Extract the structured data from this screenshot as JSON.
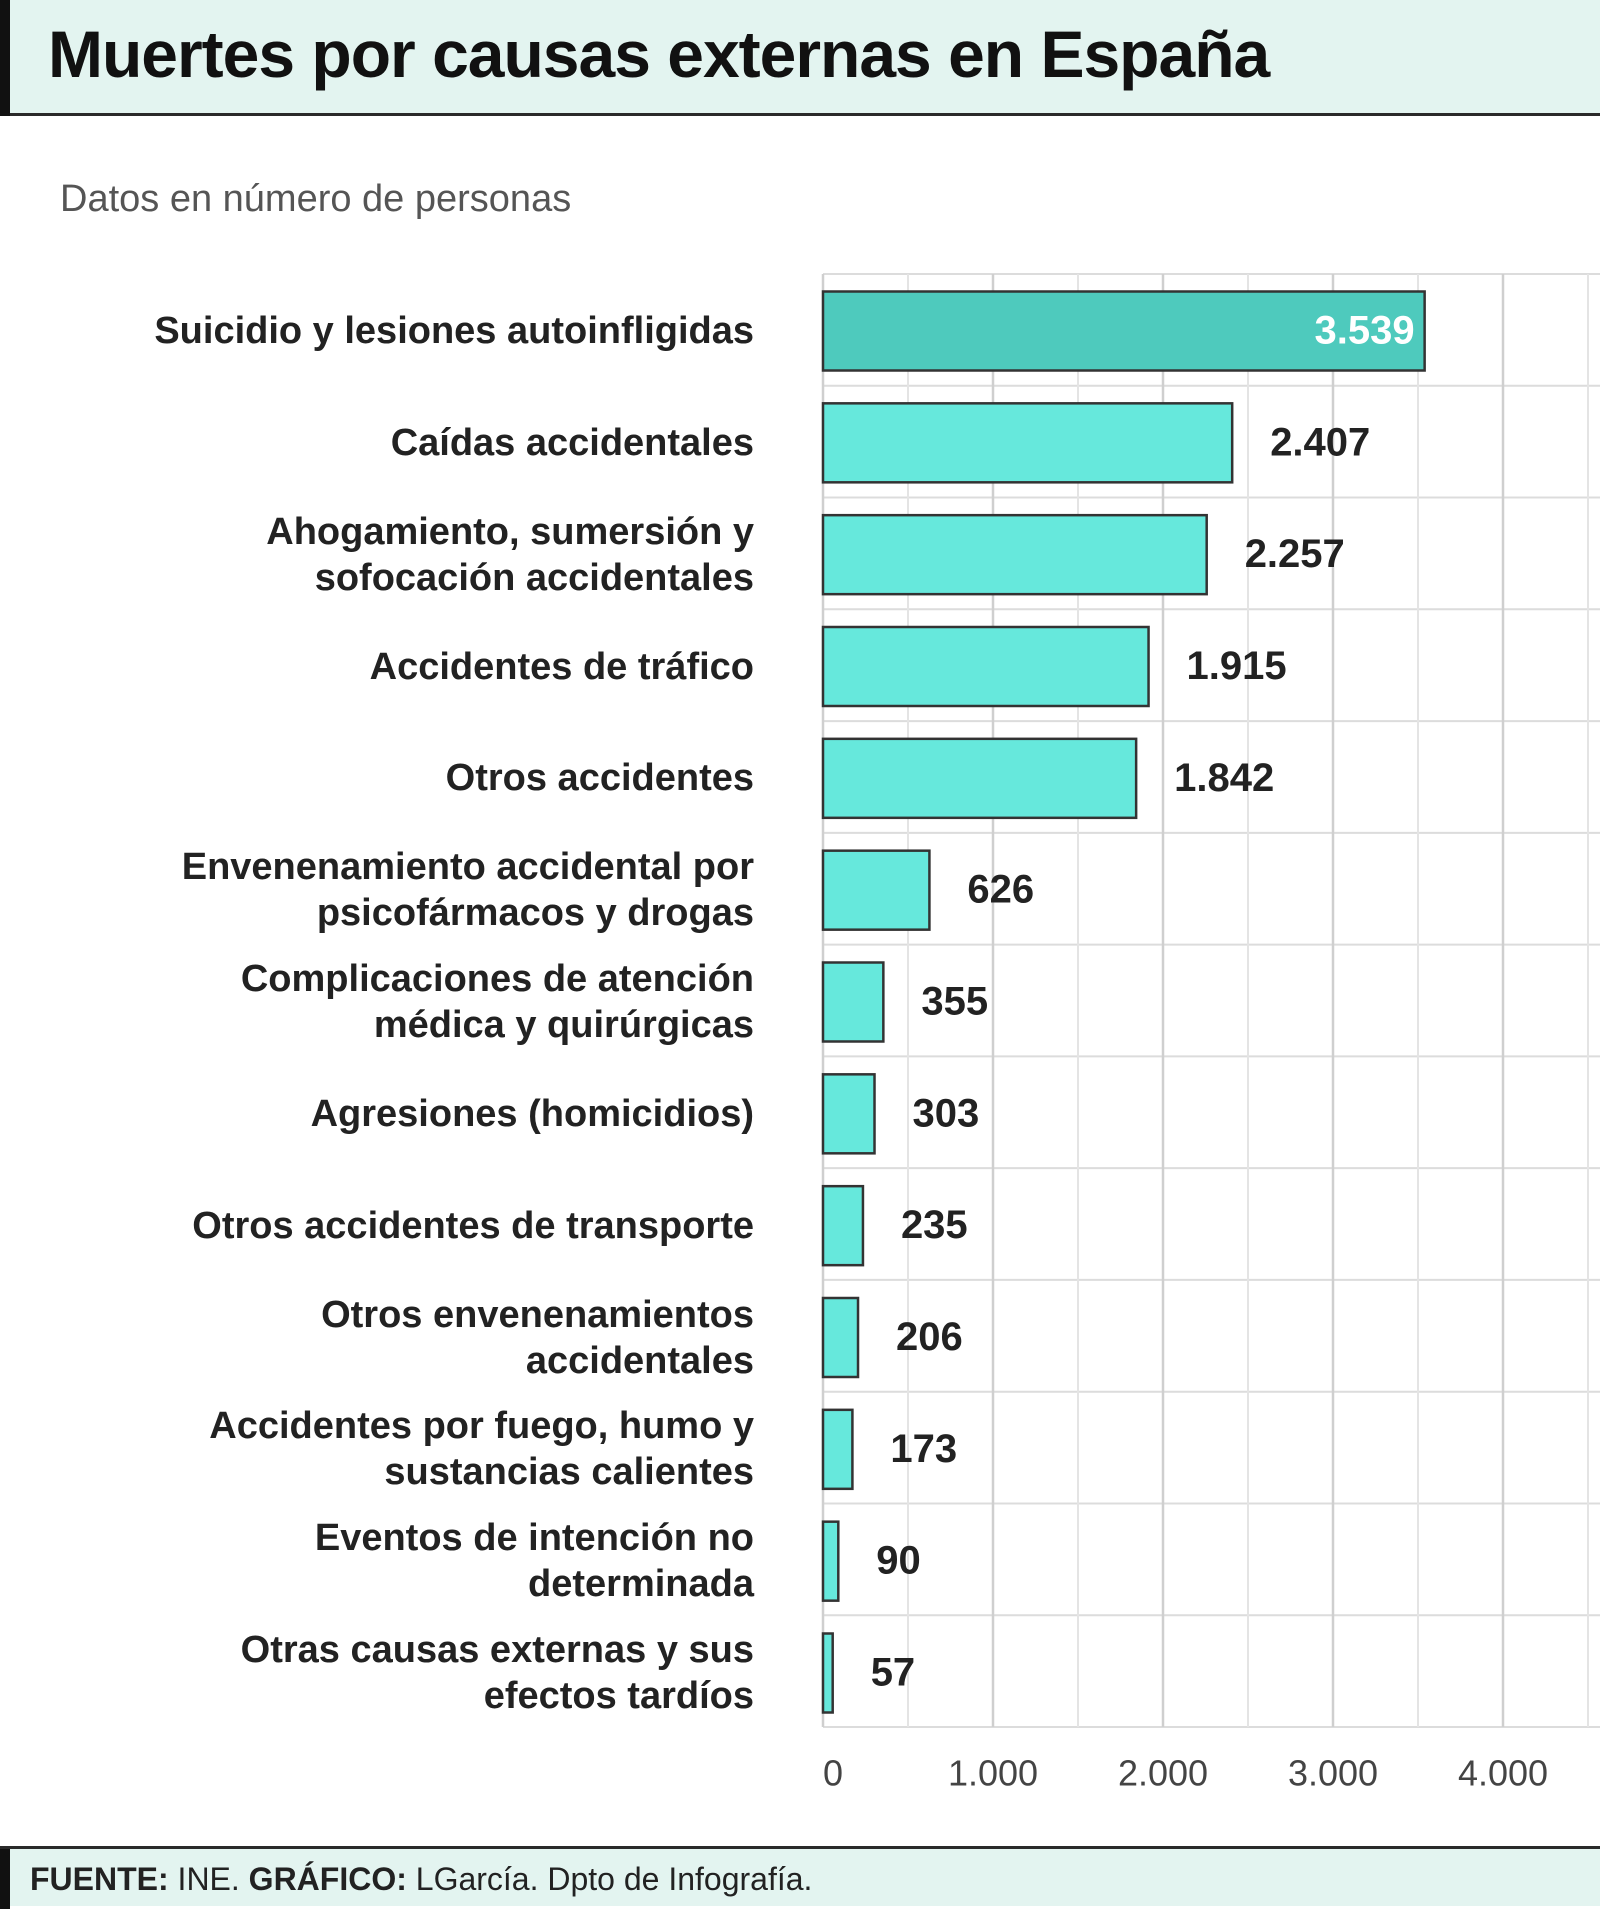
{
  "chart_data": {
    "type": "hbar",
    "title": "Muertes por causas externas en España",
    "subtitle": "Datos en número de personas",
    "categories": [
      "Suicidio y lesiones autoinfligidas",
      "Caídas accidentales",
      "Ahogamiento, sumersión y\nsofocación accidentales",
      "Accidentes de tráfico",
      "Otros accidentes",
      "Envenenamiento accidental por\npsicofármacos y drogas",
      "Complicaciones de atención\nmédica y quirúrgicas",
      "Agresiones (homicidios)",
      "Otros accidentes de transporte",
      "Otros envenenamientos\naccidentales",
      "Accidentes por fuego, humo y\nsustancias calientes",
      "Eventos de intención no\ndeterminada",
      "Otras causas externas y sus\nefectos tardíos"
    ],
    "values": [
      3539,
      2407,
      2257,
      1915,
      1842,
      626,
      355,
      303,
      235,
      206,
      173,
      90,
      57
    ],
    "value_labels": [
      "3.539",
      "2.407",
      "2.257",
      "1.915",
      "1.842",
      "626",
      "355",
      "303",
      "235",
      "206",
      "173",
      "90",
      "57"
    ],
    "colors": [
      "#4ecabd",
      "#66e8dc",
      "#66e8dc",
      "#66e8dc",
      "#66e8dc",
      "#66e8dc",
      "#66e8dc",
      "#66e8dc",
      "#66e8dc",
      "#66e8dc",
      "#66e8dc",
      "#66e8dc",
      "#66e8dc"
    ],
    "xlim": [
      0,
      4500
    ],
    "xticks": [
      0,
      {
        "value": 1000,
        "label": "1.000"
      },
      {
        "value": 2000,
        "label": "2.000"
      },
      {
        "value": 3000,
        "label": "3.000"
      },
      {
        "value": 4000,
        "label": "4.000"
      }
    ],
    "xminorticks": [
      500,
      1500,
      2500,
      3500,
      4500
    ],
    "grid": true,
    "source_label": "FUENTE:",
    "source": "INE.",
    "credit_label": "GRÁFICO:",
    "credit": "LGarcía. Dpto de Infografía."
  }
}
